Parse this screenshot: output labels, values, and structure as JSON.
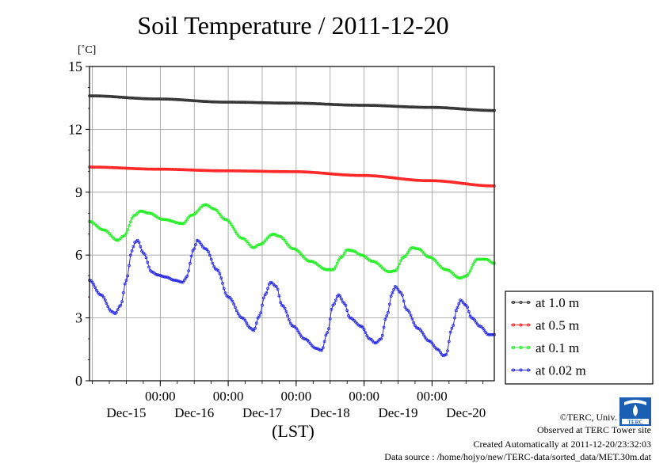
{
  "title": "Soil Temperature / 2011-12-20",
  "unit_label": "[˚C]",
  "xlabel": "(LST)",
  "footer": {
    "copyright": "©TERC, Univ. Tsukuba",
    "observed": "Observed at TERC Tower site",
    "created": "Created Automatically at 2011-12-20/23:32:03",
    "source": "Data source : /home/hojyo/new/TERC-data/sorted_data/MET.30m.dat"
  },
  "logo_text": "TERC",
  "chart_data": {
    "type": "line",
    "ylim": [
      0,
      15
    ],
    "yticks": [
      0,
      3,
      6,
      9,
      12,
      15
    ],
    "xlim": [
      0,
      143
    ],
    "x_unit": "hours since Dec-14 23:00 LST",
    "xtick_positions": [
      25,
      49,
      73,
      97,
      121
    ],
    "xtick_time_labels": [
      "00:00",
      "00:00",
      "00:00",
      "00:00",
      "00:00"
    ],
    "date_labels": [
      {
        "label": "Dec-15",
        "at": 13
      },
      {
        "label": "Dec-16",
        "at": 37
      },
      {
        "label": "Dec-17",
        "at": 61
      },
      {
        "label": "Dec-18",
        "at": 85
      },
      {
        "label": "Dec-19",
        "at": 109
      },
      {
        "label": "Dec-20",
        "at": 133
      }
    ],
    "grid": true,
    "legend_position": "right-bottom",
    "series": [
      {
        "name": "at 1.0 m",
        "color": "#303030",
        "points": [
          [
            0,
            13.6
          ],
          [
            24,
            13.45
          ],
          [
            48,
            13.3
          ],
          [
            72,
            13.25
          ],
          [
            96,
            13.15
          ],
          [
            120,
            13.05
          ],
          [
            143,
            12.9
          ]
        ]
      },
      {
        "name": "at 0.5 m",
        "color": "#ff2020",
        "points": [
          [
            0,
            10.2
          ],
          [
            24,
            10.1
          ],
          [
            48,
            10.02
          ],
          [
            72,
            9.98
          ],
          [
            96,
            9.8
          ],
          [
            120,
            9.55
          ],
          [
            143,
            9.3
          ]
        ]
      },
      {
        "name": "at 0.1 m",
        "color": "#20ee20",
        "points": [
          [
            0,
            7.6
          ],
          [
            5,
            7.2
          ],
          [
            10,
            6.7
          ],
          [
            12,
            6.9
          ],
          [
            16,
            7.9
          ],
          [
            18,
            8.1
          ],
          [
            21,
            8.0
          ],
          [
            26,
            7.7
          ],
          [
            33,
            7.5
          ],
          [
            36,
            7.9
          ],
          [
            41,
            8.4
          ],
          [
            44,
            8.2
          ],
          [
            48,
            7.7
          ],
          [
            54,
            6.8
          ],
          [
            58,
            6.35
          ],
          [
            60,
            6.5
          ],
          [
            65,
            7.0
          ],
          [
            67,
            6.9
          ],
          [
            72,
            6.3
          ],
          [
            78,
            5.7
          ],
          [
            84,
            5.3
          ],
          [
            86,
            5.3
          ],
          [
            89,
            5.9
          ],
          [
            91,
            6.25
          ],
          [
            93,
            6.2
          ],
          [
            96,
            6.0
          ],
          [
            100,
            5.7
          ],
          [
            106,
            5.2
          ],
          [
            108,
            5.25
          ],
          [
            111,
            5.9
          ],
          [
            114,
            6.35
          ],
          [
            116,
            6.3
          ],
          [
            120,
            5.9
          ],
          [
            126,
            5.3
          ],
          [
            131,
            4.9
          ],
          [
            133,
            5.0
          ],
          [
            137,
            5.8
          ],
          [
            140,
            5.8
          ],
          [
            143,
            5.6
          ]
        ]
      },
      {
        "name": "at 0.02 m",
        "color": "#2828e0",
        "points": [
          [
            0,
            4.8
          ],
          [
            4,
            4.1
          ],
          [
            8,
            3.3
          ],
          [
            9,
            3.2
          ],
          [
            11,
            3.6
          ],
          [
            13,
            4.8
          ],
          [
            15,
            6.2
          ],
          [
            16,
            6.6
          ],
          [
            17,
            6.7
          ],
          [
            19,
            6.1
          ],
          [
            22,
            5.2
          ],
          [
            24,
            5.05
          ],
          [
            27,
            4.95
          ],
          [
            30,
            4.8
          ],
          [
            33,
            4.7
          ],
          [
            34,
            4.9
          ],
          [
            37,
            6.3
          ],
          [
            38,
            6.7
          ],
          [
            41,
            6.3
          ],
          [
            45,
            5.3
          ],
          [
            49,
            4.0
          ],
          [
            54,
            3.0
          ],
          [
            57,
            2.5
          ],
          [
            58,
            2.4
          ],
          [
            60,
            3.1
          ],
          [
            62,
            4.1
          ],
          [
            64,
            4.7
          ],
          [
            66,
            4.5
          ],
          [
            68,
            3.6
          ],
          [
            72,
            2.6
          ],
          [
            76,
            2.0
          ],
          [
            80,
            1.55
          ],
          [
            82,
            1.45
          ],
          [
            84,
            2.3
          ],
          [
            86,
            3.6
          ],
          [
            88,
            4.1
          ],
          [
            90,
            3.7
          ],
          [
            92,
            3.0
          ],
          [
            96,
            2.6
          ],
          [
            99,
            2.0
          ],
          [
            101,
            1.8
          ],
          [
            103,
            2.0
          ],
          [
            105,
            3.1
          ],
          [
            107,
            4.2
          ],
          [
            108,
            4.5
          ],
          [
            110,
            4.2
          ],
          [
            112,
            3.4
          ],
          [
            116,
            2.5
          ],
          [
            120,
            1.9
          ],
          [
            123,
            1.5
          ],
          [
            125,
            1.2
          ],
          [
            126,
            1.25
          ],
          [
            128,
            2.5
          ],
          [
            130,
            3.5
          ],
          [
            131,
            3.85
          ],
          [
            133,
            3.6
          ],
          [
            135,
            3.0
          ],
          [
            138,
            2.6
          ],
          [
            141,
            2.2
          ],
          [
            143,
            2.2
          ]
        ]
      }
    ]
  }
}
